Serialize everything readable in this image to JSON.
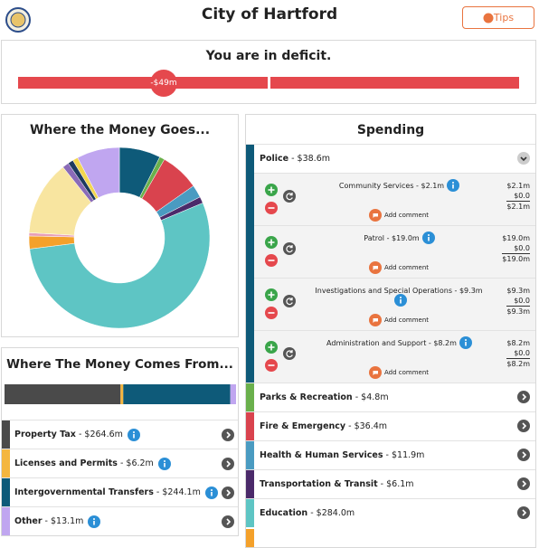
{
  "header": {
    "title": "City of Hartford",
    "tips": "Tips"
  },
  "deficit": {
    "message": "You are in deficit.",
    "marker": "-$49m"
  },
  "money_goes": {
    "title": "Where the Money Goes...",
    "slices": [
      {
        "value": 38.6,
        "color": "#0e5a79"
      },
      {
        "value": 4.8,
        "color": "#6ab04c"
      },
      {
        "value": 36.4,
        "color": "#d9434e"
      },
      {
        "value": 11.9,
        "color": "#4a9bc1"
      },
      {
        "value": 6.1,
        "color": "#4b2a6a"
      },
      {
        "value": 284.0,
        "color": "#5ec5c4"
      },
      {
        "value": 12,
        "color": "#f4a12a"
      },
      {
        "value": 3,
        "color": "#e8a0b8"
      },
      {
        "value": 70,
        "color": "#f8e5a0"
      },
      {
        "value": 6,
        "color": "#8a6bb8"
      },
      {
        "value": 5,
        "color": "#1e3a5f"
      },
      {
        "value": 5,
        "color": "#f3d64e"
      },
      {
        "value": 40,
        "color": "#c0a6f0"
      }
    ]
  },
  "money_comes": {
    "title": "Where The Money Comes From...",
    "segments": [
      {
        "name": "Property Tax",
        "amount": " - $264.6m",
        "value": 264.6,
        "color": "#4a4a4a"
      },
      {
        "name": "Licenses and Permits",
        "amount": " - $6.2m",
        "value": 6.2,
        "color": "#f4b63f"
      },
      {
        "name": "Intergovernmental Transfers",
        "amount": " - $244.1m",
        "value": 244.1,
        "color": "#0e5a79"
      },
      {
        "name": "Other",
        "amount": " - $13.1m",
        "value": 13.1,
        "color": "#c0a6f0"
      }
    ]
  },
  "spending": {
    "title": "Spending",
    "categories": [
      {
        "name": "Police",
        "amount": " - $38.6m",
        "color": "#0e5a79",
        "items": [
          {
            "name": "Community Services - $2.1m",
            "values": [
              "$2.1m",
              "$0.0",
              "$2.1m"
            ],
            "comment": "Add comment"
          },
          {
            "name": "Patrol - $19.0m",
            "values": [
              "$19.0m",
              "$0.0",
              "$19.0m"
            ],
            "comment": "Add comment"
          },
          {
            "name": "Investigations and Special Operations - $9.3m",
            "values": [
              "$9.3m",
              "$0.0",
              "$9.3m"
            ],
            "comment": "Add comment"
          },
          {
            "name": "Administration and Support - $8.2m",
            "values": [
              "$8.2m",
              "$0.0",
              "$8.2m"
            ],
            "comment": "Add comment"
          }
        ]
      },
      {
        "name": "Parks & Recreation",
        "amount": " - $4.8m",
        "color": "#6ab04c"
      },
      {
        "name": "Fire & Emergency",
        "amount": " - $36.4m",
        "color": "#d9434e"
      },
      {
        "name": "Health & Human Services",
        "amount": " - $11.9m",
        "color": "#4a9bc1"
      },
      {
        "name": "Transportation & Transit",
        "amount": " - $6.1m",
        "color": "#4b2a6a"
      },
      {
        "name": "Education",
        "amount": " - $284.0m",
        "color": "#5ec5c4"
      }
    ]
  }
}
